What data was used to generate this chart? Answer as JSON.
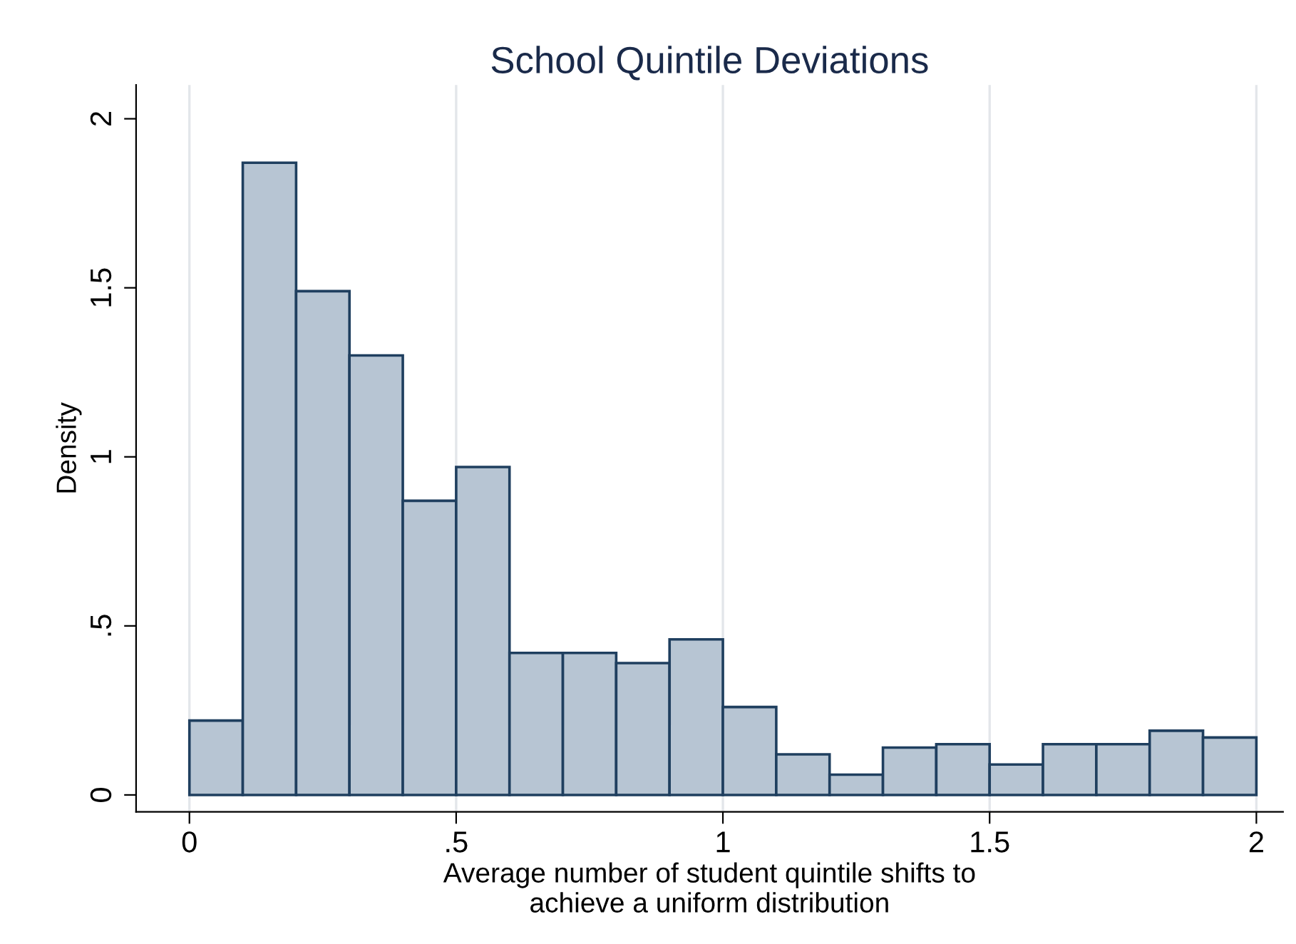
{
  "chart_data": {
    "type": "histogram",
    "title": "School Quintile Deviations",
    "xlabel": "Average number of student quintile shifts to\nachieve a uniform distribution",
    "ylabel": "Density",
    "bins": [
      0,
      0.1,
      0.2,
      0.3,
      0.4,
      0.5,
      0.6,
      0.7,
      0.8,
      0.9,
      1.0,
      1.1,
      1.2,
      1.3,
      1.4,
      1.5,
      1.6,
      1.7,
      1.8,
      1.9,
      2.0
    ],
    "values": [
      0.22,
      1.87,
      1.49,
      1.3,
      0.87,
      0.97,
      0.42,
      0.42,
      0.39,
      0.46,
      0.26,
      0.12,
      0.06,
      0.14,
      0.15,
      0.09,
      0.15,
      0.15,
      0.19,
      0.17
    ],
    "color": "#b7c5d3",
    "xlim": [
      -0.1,
      2.05
    ],
    "ylim": [
      -0.05,
      2.1
    ],
    "xticks": [
      0,
      {
        "value": 0.5,
        "label": ".5"
      },
      1,
      1.5,
      2
    ],
    "yticks": [
      0,
      {
        "value": 0.5,
        "label": ".5"
      },
      1,
      1.5,
      2
    ],
    "grid": "x"
  }
}
